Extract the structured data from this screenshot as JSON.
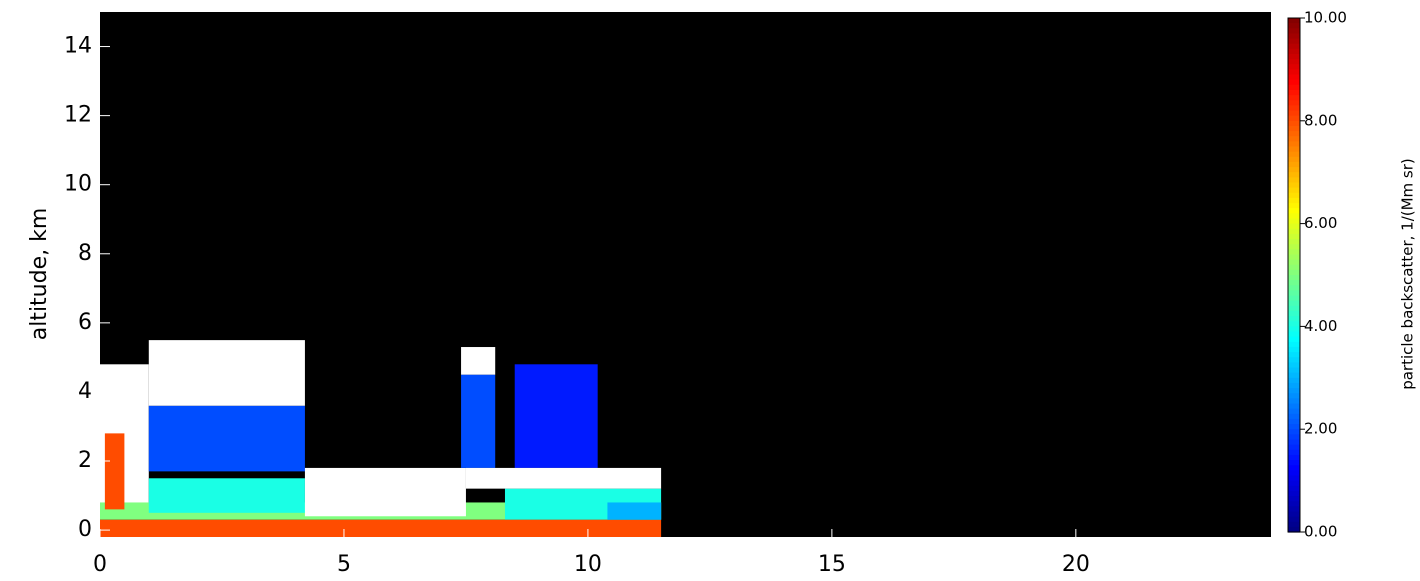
{
  "chart_data": {
    "type": "heatmap",
    "y_label": "altitude, km",
    "colorbar_label": "particle backscatter, 1/(Mm sr)",
    "xlim": [
      0,
      24
    ],
    "xticks": [
      0,
      5,
      10,
      15,
      20
    ],
    "ylim": [
      -0.2,
      15
    ],
    "yticks": [
      0,
      2,
      4,
      6,
      8,
      10,
      12,
      14
    ],
    "clim": [
      0,
      10
    ],
    "cticks": [
      {
        "value": 0,
        "label": "0.00"
      },
      {
        "value": 2,
        "label": "2.00"
      },
      {
        "value": 4,
        "label": "4.00"
      },
      {
        "value": 6,
        "label": "6.00"
      },
      {
        "value": 8,
        "label": "8.00"
      },
      {
        "value": 10,
        "label": "10.00"
      }
    ],
    "background": "#000000",
    "saturated_color": "#ffffff",
    "regions": {
      "x0": [
        0,
        0,
        1,
        1,
        1,
        0.1,
        4.2,
        7.4,
        7.4,
        8.5,
        8.3,
        7.5,
        0,
        10.4
      ],
      "x1": [
        1,
        11.5,
        4.2,
        4.2,
        4.2,
        0.5,
        7.5,
        8.1,
        8.1,
        10.2,
        11.5,
        11.5,
        11.5,
        11.5
      ],
      "y0": [
        0.5,
        0.3,
        0.5,
        1.7,
        3.6,
        0.6,
        0.4,
        1.8,
        4.5,
        1.8,
        0.3,
        1.2,
        -0.2,
        0.3
      ],
      "y1": [
        4.8,
        0.8,
        1.5,
        3.6,
        5.5,
        2.8,
        1.8,
        4.5,
        5.3,
        4.8,
        1.2,
        1.8,
        0.3,
        0.8
      ],
      "values": [
        12,
        5,
        4,
        2,
        12,
        8,
        12,
        2,
        12,
        1.5,
        4,
        12,
        8,
        3
      ]
    }
  }
}
